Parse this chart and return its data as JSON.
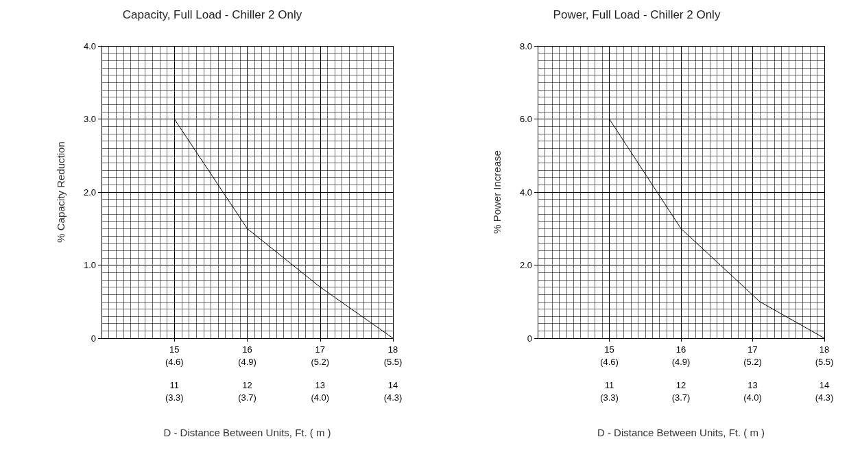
{
  "chart_data": [
    {
      "type": "line",
      "title": "Capacity, Full Load - Chiller 2 Only",
      "xlabel": "D - Distance Between Units, Ft. ( m )",
      "ylabel": "% Capacity Reduction",
      "x": [
        15,
        16,
        17,
        18
      ],
      "series": [
        {
          "color": "#000000",
          "values": [
            3.0,
            1.5,
            0.7,
            0
          ]
        }
      ],
      "xlim": [
        14,
        18
      ],
      "xticks": [
        15,
        16,
        17,
        18
      ],
      "x2lim": [
        10,
        14
      ],
      "x2ticks": [
        11,
        12,
        13,
        14
      ],
      "ylim": [
        0,
        4
      ],
      "yticks": [
        0,
        {
          "value": 1,
          "label": "1.0"
        },
        {
          "value": 2,
          "label": "2.0"
        },
        {
          "value": 3,
          "label": "3.0"
        },
        {
          "value": 4,
          "label": "4.0"
        }
      ],
      "annotations": [
        "(4.6)",
        "(4.9)",
        "(5.2)",
        "(5.5)",
        "(3.3)",
        "(3.7)",
        "(4.0)",
        "(4.3)"
      ],
      "grid": true,
      "marker": "none",
      "line_style": "solid"
    },
    {
      "type": "line",
      "title": "Power, Full Load - Chiller 2 Only",
      "xlabel": "D - Distance Between Units, Ft. ( m )",
      "ylabel": "% Power Increase",
      "x": [
        15,
        16,
        17.1,
        18
      ],
      "series": [
        {
          "color": "#000000",
          "values": [
            6.0,
            3.0,
            1.0,
            0
          ]
        }
      ],
      "xlim": [
        14,
        18
      ],
      "xticks": [
        15,
        16,
        17,
        18
      ],
      "x2lim": [
        10,
        14
      ],
      "x2ticks": [
        11,
        12,
        13,
        14
      ],
      "ylim": [
        0,
        8
      ],
      "yticks": [
        0,
        {
          "value": 2,
          "label": "2.0"
        },
        {
          "value": 4,
          "label": "4.0"
        },
        {
          "value": 6,
          "label": "6.0"
        },
        {
          "value": 8,
          "label": "8.0"
        }
      ],
      "annotations": [
        "(4.6)",
        "(4.9)",
        "(5.2)",
        "(5.5)",
        "(3.3)",
        "(3.7)",
        "(4.0)",
        "(4.3)"
      ],
      "grid": true,
      "marker": "none",
      "line_style": "solid"
    }
  ]
}
